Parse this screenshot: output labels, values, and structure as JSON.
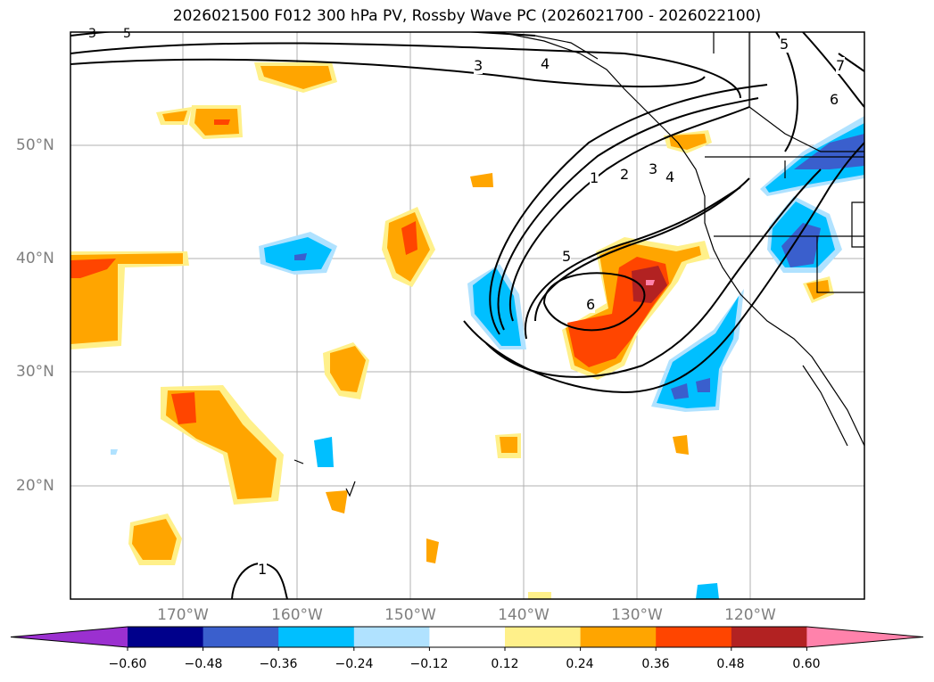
{
  "title": "2026021500 F012 300 hPa PV, Rossby Wave PC (2026021700 - 2026022100)",
  "lat_labels": [
    "50°N",
    "40°N",
    "30°N",
    "20°N"
  ],
  "lon_labels": [
    "170°W",
    "160°W",
    "150°W",
    "140°W",
    "130°W",
    "120°W"
  ],
  "contour_labels": [
    "1",
    "2",
    "3",
    "4",
    "5",
    "6",
    "3",
    "4",
    "5",
    "6",
    "7",
    "1",
    "3",
    "5"
  ],
  "colorbar": {
    "ticks": [
      "−0.60",
      "−0.48",
      "−0.36",
      "−0.24",
      "−0.12",
      "0.12",
      "0.24",
      "0.36",
      "0.48",
      "0.60"
    ],
    "colors": [
      "#9b30d0",
      "#00008b",
      "#3a5fcd",
      "#00bfff",
      "#b0e2ff",
      "#ffffff",
      "#fff08a",
      "#ffa500",
      "#ff4500",
      "#b22222",
      "#ff82ab"
    ]
  }
}
